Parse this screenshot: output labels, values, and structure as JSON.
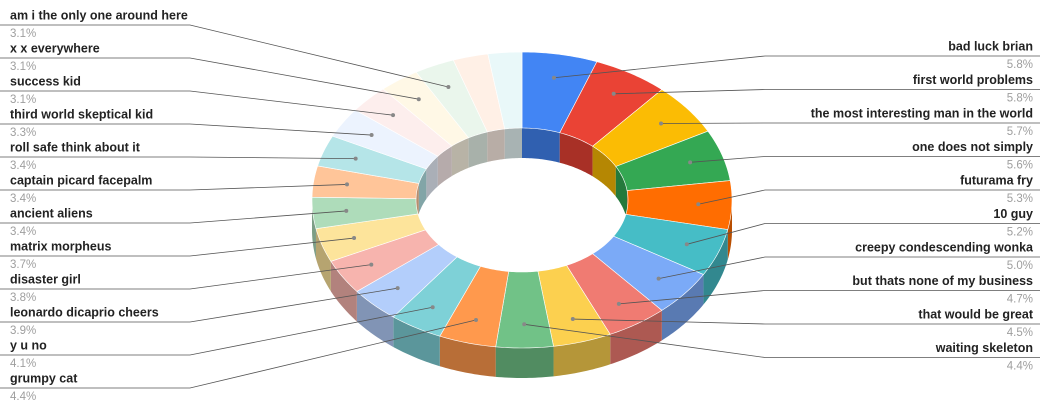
{
  "chart_data": {
    "type": "pie3d",
    "donut": true,
    "categories": [
      "bad luck brian",
      "first world problems",
      "the most interesting man in the world",
      "one does not simply",
      "futurama fry",
      "10 guy",
      "creepy condescending wonka",
      "but thats none of my business",
      "that would be great",
      "waiting skeleton",
      "grumpy cat",
      "y u no",
      "leonardo dicaprio cheers",
      "disaster girl",
      "matrix morpheus",
      "ancient aliens",
      "captain picard facepalm",
      "roll safe think about it",
      "third world skeptical kid",
      "success kid",
      "x x everywhere",
      "am i the only one around here",
      null,
      null
    ],
    "values": [
      5.8,
      5.8,
      5.7,
      5.6,
      5.3,
      5.2,
      5.0,
      4.7,
      4.5,
      4.4,
      4.4,
      4.1,
      3.9,
      3.8,
      3.7,
      3.4,
      3.4,
      3.4,
      3.3,
      3.1,
      3.1,
      3.1,
      2.7,
      2.6
    ],
    "value_labels": [
      "5.8%",
      "5.8%",
      "5.7%",
      "5.6%",
      "5.3%",
      "5.2%",
      "5.0%",
      "4.7%",
      "4.5%",
      "4.4%",
      "4.4%",
      "4.1%",
      "3.9%",
      "3.8%",
      "3.7%",
      "3.4%",
      "3.4%",
      "3.4%",
      "3.3%",
      "3.1%",
      "3.1%",
      "3.1%",
      null,
      null
    ],
    "colors": [
      "#4285f4",
      "#ea4335",
      "#fbbc04",
      "#34a853",
      "#ff6d01",
      "#46bdc6",
      "#7baaf7",
      "#f07b72",
      "#fcd04f",
      "#71c287",
      "#ff994d",
      "#7ed1d7",
      "#b3cefb",
      "#f7b4ae",
      "#fde49b",
      "#aedcba",
      "#ffc599",
      "#b5e5e8",
      "#ecf3fe",
      "#fdeeed",
      "#fff8e6",
      "#eaf6ec",
      "#fff0e6",
      "#e9f8f9"
    ]
  }
}
